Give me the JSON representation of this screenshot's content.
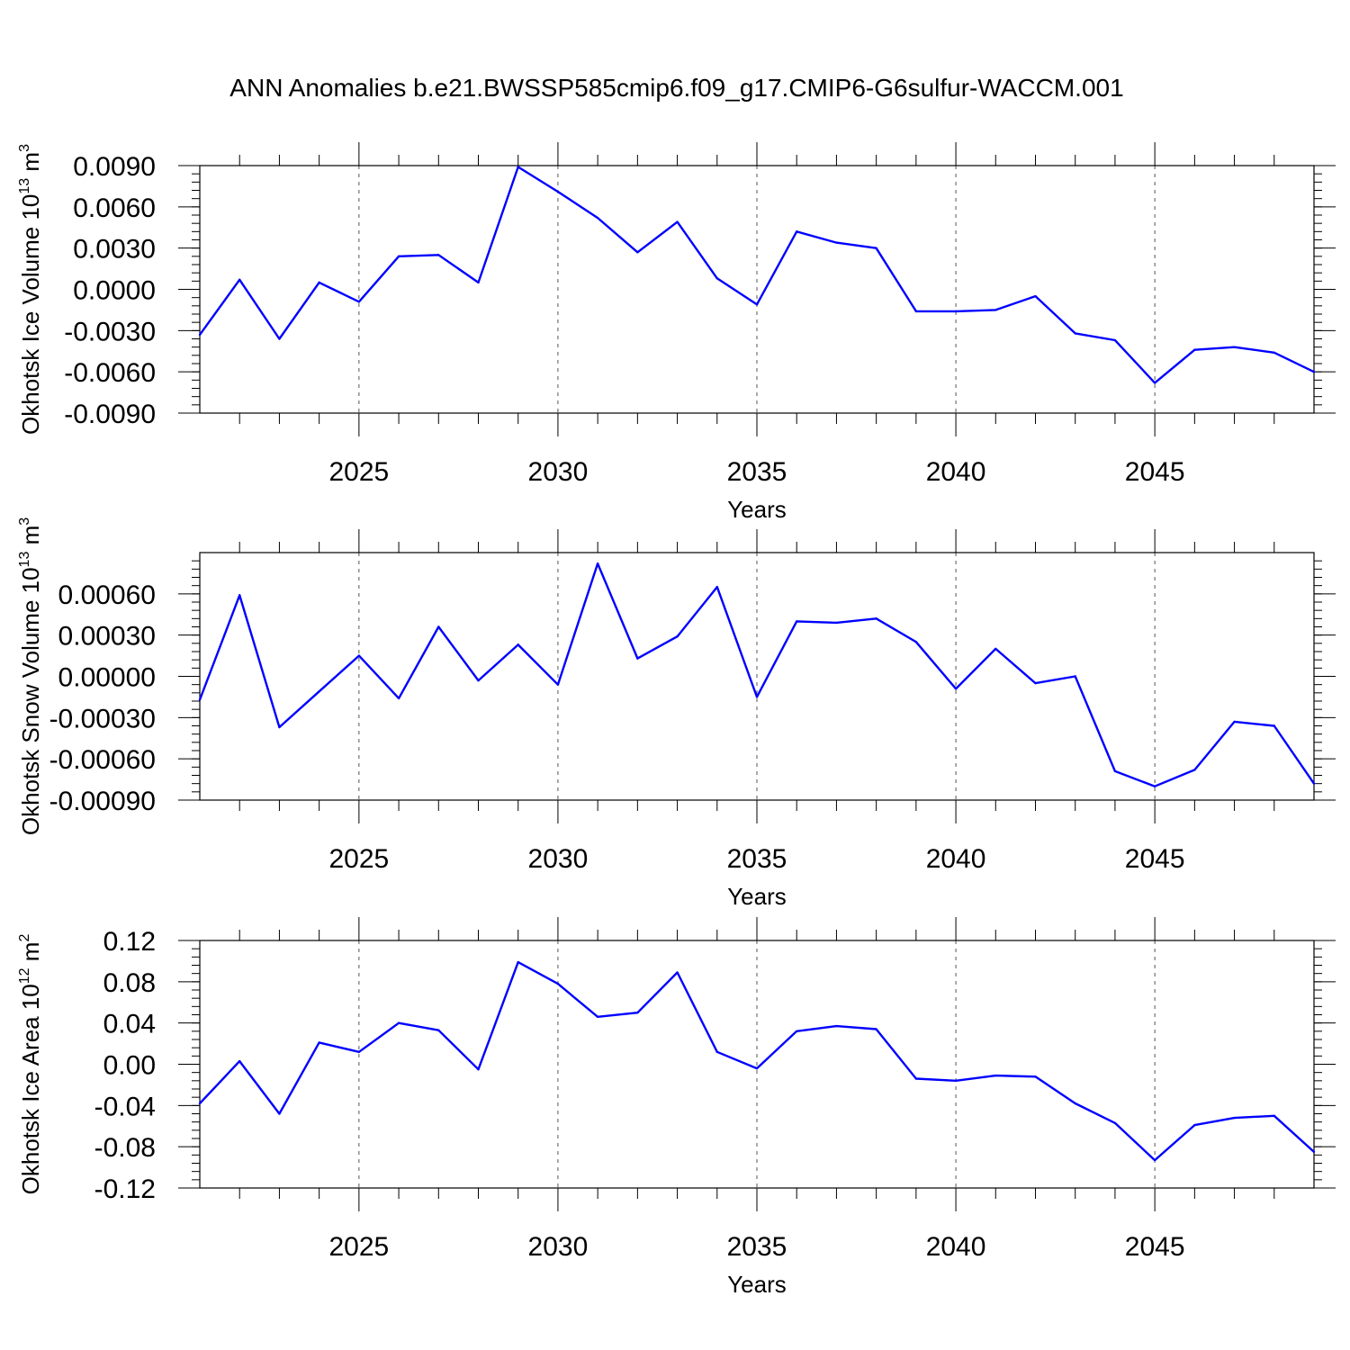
{
  "title": "ANN Anomalies b.e21.BWSSP585cmip6.f09_g17.CMIP6-G6sulfur-WACCM.001",
  "line_color": "#0000ff",
  "chart_data": [
    {
      "type": "line",
      "name": "ice-volume",
      "ylabel_main": "Okhotsk Ice Volume 10",
      "ylabel_exp": "13",
      "ylabel_unit": " m",
      "ylabel_unit_exp": "3",
      "xlabel": "Years",
      "xlim": [
        2021,
        2049
      ],
      "ylim": [
        -0.009,
        0.009
      ],
      "x_ticks": [
        2025,
        2030,
        2035,
        2040,
        2045
      ],
      "x_tick_labels": [
        "2025",
        "2030",
        "2035",
        "2040",
        "2045"
      ],
      "y_ticks": [
        -0.009,
        -0.006,
        -0.003,
        0.0,
        0.003,
        0.006,
        0.009
      ],
      "y_tick_labels": [
        "-0.0090",
        "-0.0060",
        "-0.0030",
        "0.0000",
        "0.0030",
        "0.0060",
        "0.0090"
      ],
      "y_minor_step": 0.0006,
      "x": [
        2021,
        2022,
        2023,
        2024,
        2025,
        2026,
        2027,
        2028,
        2029,
        2030,
        2031,
        2032,
        2033,
        2034,
        2035,
        2036,
        2037,
        2038,
        2039,
        2040,
        2041,
        2042,
        2043,
        2044,
        2045,
        2046,
        2047,
        2048,
        2049
      ],
      "values": [
        -0.0033,
        0.0007,
        -0.0036,
        0.0005,
        -0.0009,
        0.0024,
        0.0025,
        0.0005,
        0.0089,
        0.0071,
        0.0052,
        0.0027,
        0.0049,
        0.0008,
        -0.0011,
        0.0042,
        0.0034,
        0.003,
        -0.0016,
        -0.0016,
        -0.0015,
        -0.0005,
        -0.0032,
        -0.0037,
        -0.0068,
        -0.0044,
        -0.0042,
        -0.0046,
        -0.006
      ]
    },
    {
      "type": "line",
      "name": "snow-volume",
      "ylabel_main": "Okhotsk Snow Volume 10",
      "ylabel_exp": "13",
      "ylabel_unit": " m",
      "ylabel_unit_exp": "3",
      "xlabel": "Years",
      "xlim": [
        2021,
        2049
      ],
      "ylim": [
        -0.0009,
        0.0009
      ],
      "x_ticks": [
        2025,
        2030,
        2035,
        2040,
        2045
      ],
      "x_tick_labels": [
        "2025",
        "2030",
        "2035",
        "2040",
        "2045"
      ],
      "y_ticks": [
        -0.0009,
        -0.0006,
        -0.0003,
        0.0,
        0.0003,
        0.0006
      ],
      "y_tick_labels": [
        "-0.00090",
        "-0.00060",
        "-0.00030",
        "0.00000",
        "0.00030",
        "0.00060"
      ],
      "y_minor_step": 6e-05,
      "x": [
        2021,
        2022,
        2023,
        2024,
        2025,
        2026,
        2027,
        2028,
        2029,
        2030,
        2031,
        2032,
        2033,
        2034,
        2035,
        2036,
        2037,
        2038,
        2039,
        2040,
        2041,
        2042,
        2043,
        2044,
        2045,
        2046,
        2047,
        2048,
        2049
      ],
      "values": [
        -0.00017,
        0.00059,
        -0.00037,
        -0.00011,
        0.00015,
        -0.00016,
        0.00036,
        -3e-05,
        0.00023,
        -6e-05,
        0.00082,
        0.00013,
        0.00029,
        0.00065,
        -0.00015,
        0.0004,
        0.00039,
        0.00042,
        0.00025,
        -9e-05,
        0.0002,
        -5e-05,
        0.0,
        -0.00069,
        -0.0008,
        -0.00068,
        -0.00033,
        -0.00036,
        -0.00078
      ]
    },
    {
      "type": "line",
      "name": "ice-area",
      "ylabel_main": "Okhotsk Ice Area 10",
      "ylabel_exp": "12",
      "ylabel_unit": " m",
      "ylabel_unit_exp": "2",
      "xlabel": "Years",
      "xlim": [
        2021,
        2049
      ],
      "ylim": [
        -0.12,
        0.12
      ],
      "x_ticks": [
        2025,
        2030,
        2035,
        2040,
        2045
      ],
      "x_tick_labels": [
        "2025",
        "2030",
        "2035",
        "2040",
        "2045"
      ],
      "y_ticks": [
        -0.12,
        -0.08,
        -0.04,
        0.0,
        0.04,
        0.08,
        0.12
      ],
      "y_tick_labels": [
        "-0.12",
        "-0.08",
        "-0.04",
        "0.00",
        "0.04",
        "0.08",
        "0.12"
      ],
      "y_minor_step": 0.008,
      "x": [
        2021,
        2022,
        2023,
        2024,
        2025,
        2026,
        2027,
        2028,
        2029,
        2030,
        2031,
        2032,
        2033,
        2034,
        2035,
        2036,
        2037,
        2038,
        2039,
        2040,
        2041,
        2042,
        2043,
        2044,
        2045,
        2046,
        2047,
        2048,
        2049
      ],
      "values": [
        -0.038,
        0.003,
        -0.048,
        0.021,
        0.012,
        0.04,
        0.033,
        -0.005,
        0.099,
        0.078,
        0.046,
        0.05,
        0.089,
        0.012,
        -0.004,
        0.032,
        0.037,
        0.034,
        -0.014,
        -0.016,
        -0.011,
        -0.012,
        -0.038,
        -0.057,
        -0.093,
        -0.059,
        -0.052,
        -0.05,
        -0.085
      ]
    }
  ]
}
